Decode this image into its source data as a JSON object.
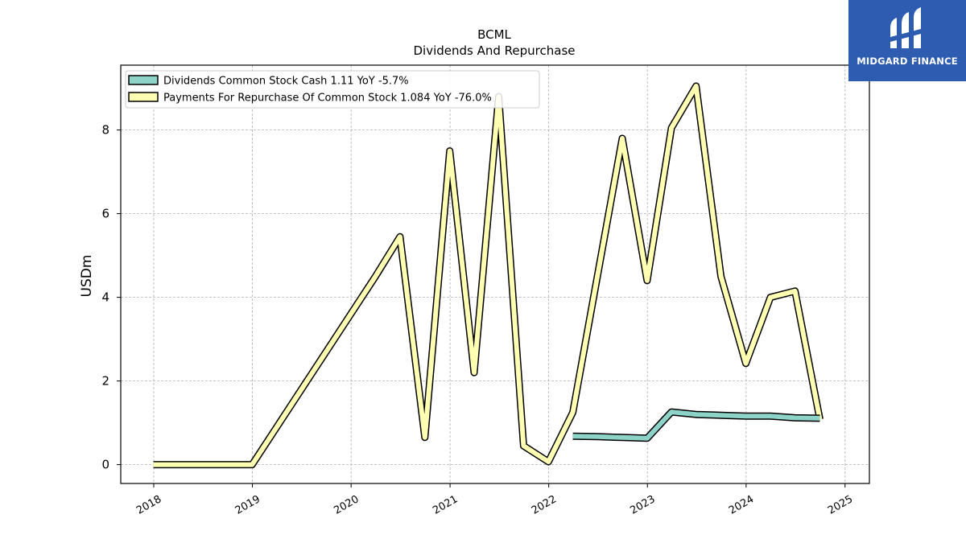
{
  "chart_data": {
    "type": "line",
    "title": "BCML",
    "subtitle": "Dividends And Repurchase",
    "ylabel": "USDm",
    "xlabel": "",
    "ylim": [
      -0.45,
      9.55
    ],
    "xlim": [
      "2017-09-01",
      "2025-04-01"
    ],
    "x_tick_labels": [
      "2018",
      "2019",
      "2020",
      "2021",
      "2022",
      "2023",
      "2024",
      "2025"
    ],
    "y_tick_labels": [
      "0",
      "2",
      "4",
      "6",
      "8"
    ],
    "grid": true,
    "legend_position": "top-left",
    "series": [
      {
        "name": "Dividends Common Stock Cash  1.11 YoY -5.7%",
        "color": "#8dd3c7",
        "points": [
          [
            "2022-03-31",
            0.68
          ],
          [
            "2022-06-30",
            0.67
          ],
          [
            "2022-09-30",
            0.65
          ],
          [
            "2022-12-31",
            0.63
          ],
          [
            "2023-03-31",
            1.26
          ],
          [
            "2023-06-30",
            1.2
          ],
          [
            "2023-09-30",
            1.18
          ],
          [
            "2023-12-31",
            1.16
          ],
          [
            "2024-03-31",
            1.16
          ],
          [
            "2024-06-30",
            1.12
          ],
          [
            "2024-09-30",
            1.11
          ]
        ]
      },
      {
        "name": "Payments For Repurchase Of Common Stock  1.084 YoY -76.0%",
        "color": "#ffffb3",
        "points": [
          [
            "2017-12-31",
            0.0
          ],
          [
            "2018-12-31",
            0.0
          ],
          [
            "2020-03-31",
            4.5
          ],
          [
            "2020-06-30",
            5.45
          ],
          [
            "2020-09-30",
            0.65
          ],
          [
            "2020-12-31",
            7.5
          ],
          [
            "2021-03-31",
            2.2
          ],
          [
            "2021-06-30",
            8.8
          ],
          [
            "2021-09-30",
            0.45
          ],
          [
            "2021-12-31",
            0.07
          ],
          [
            "2022-03-31",
            1.25
          ],
          [
            "2022-09-30",
            7.8
          ],
          [
            "2022-12-31",
            4.4
          ],
          [
            "2023-03-31",
            8.05
          ],
          [
            "2023-06-30",
            9.05
          ],
          [
            "2023-09-30",
            4.5
          ],
          [
            "2023-12-31",
            2.42
          ],
          [
            "2024-03-31",
            4.0
          ],
          [
            "2024-06-30",
            4.15
          ],
          [
            "2024-09-30",
            1.08
          ]
        ]
      }
    ]
  },
  "logo": {
    "brand": "MIDGARD FINANCE",
    "icon": "midgard-logo-icon",
    "background": "#2d5cb0"
  }
}
